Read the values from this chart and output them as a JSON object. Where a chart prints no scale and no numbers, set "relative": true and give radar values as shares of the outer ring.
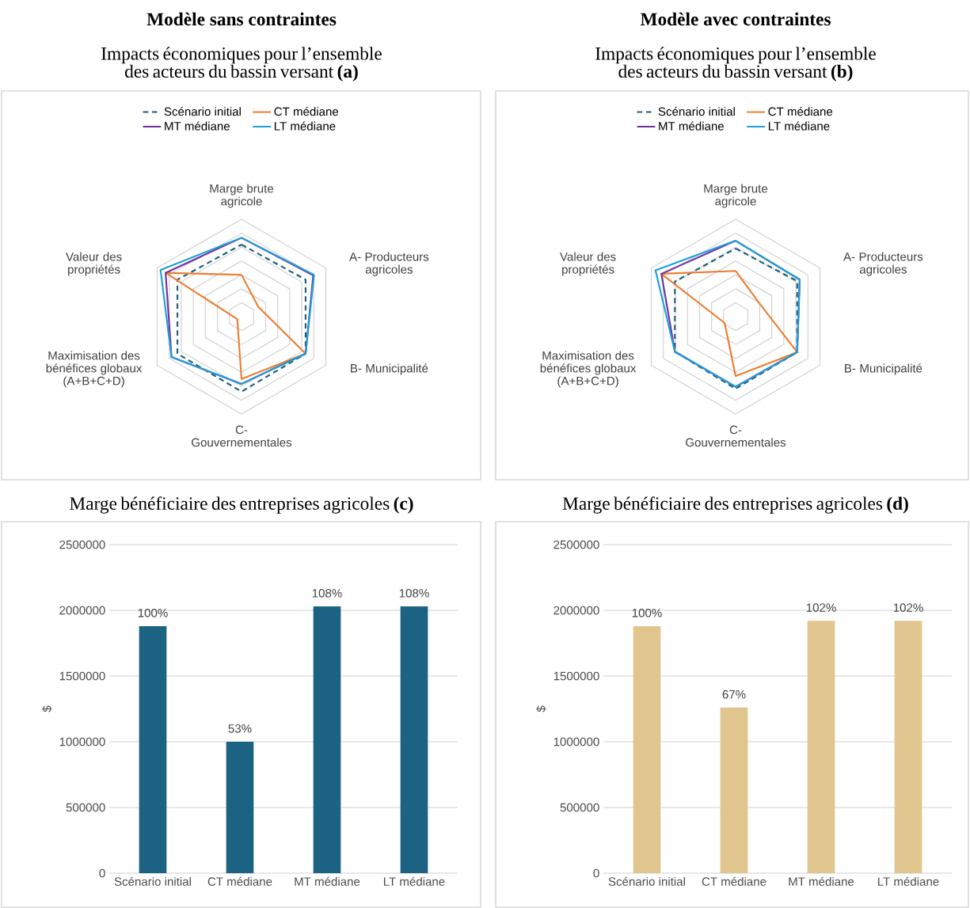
{
  "chart_data": [
    {
      "type": "radar",
      "subtitle": "Modèle sans contraintes",
      "title": "Impacts économiques pour l’ensemble des acteurs du bassin versant **(a)**",
      "categories": [
        "Marge brute agricole",
        "A- Producteurs agricoles",
        "B- Municipalité",
        "C- Gouvernementales",
        "Maximisation des bénéfices globaux (A+B+C+D)",
        "Valeur des propriétés"
      ],
      "relative": true,
      "grid": true,
      "legend": "top",
      "series": [
        {
          "name": "Scénario initial",
          "color": "#1f5f7a",
          "line_style": "dashed",
          "values": [
            0.74,
            0.76,
            0.76,
            0.77,
            0.76,
            0.76
          ]
        },
        {
          "name": "CT médiane",
          "color": "#ed7d31",
          "values": [
            0.43,
            0.2,
            0.76,
            0.64,
            0.05,
            0.9
          ]
        },
        {
          "name": "MT médiane",
          "color": "#7030a0",
          "values": [
            0.81,
            0.85,
            0.76,
            0.69,
            0.83,
            0.9
          ]
        },
        {
          "name": "LT médiane",
          "color": "#1e9fd8",
          "values": [
            0.81,
            0.86,
            0.76,
            0.69,
            0.83,
            0.96
          ]
        }
      ]
    },
    {
      "type": "radar",
      "subtitle": "Modèle avec contraintes",
      "title": "Impacts économiques pour l’ensemble des acteurs du bassin versant **(b)**",
      "categories": [
        "Marge brute agricole",
        "A- Producteurs agricoles",
        "B- Municipalité",
        "C- Gouvernementales",
        "Maximisation des bénéfices globaux (A+B+C+D)",
        "Valeur des propriétés"
      ],
      "relative": true,
      "grid": true,
      "legend": "top",
      "series": [
        {
          "name": "Scénario initial",
          "color": "#1f5f7a",
          "line_style": "dashed",
          "values": [
            0.7,
            0.73,
            0.73,
            0.74,
            0.72,
            0.72
          ]
        },
        {
          "name": "CT médiane",
          "color": "#ed7d31",
          "values": [
            0.47,
            0.28,
            0.73,
            0.61,
            0.13,
            0.88
          ]
        },
        {
          "name": "MT médiane",
          "color": "#7030a0",
          "values": [
            0.78,
            0.76,
            0.73,
            0.72,
            0.72,
            0.88
          ]
        },
        {
          "name": "LT médiane",
          "color": "#1e9fd8",
          "values": [
            0.78,
            0.76,
            0.73,
            0.72,
            0.72,
            0.95
          ]
        }
      ]
    },
    {
      "type": "bar",
      "title": "Marge bénéficiaire des entreprises agricoles **(c)**",
      "ylabel": "$",
      "categories": [
        "Scénario initial",
        "CT médiane",
        "MT médiane",
        "LT médiane"
      ],
      "values": [
        1880000,
        1000000,
        2030000,
        2030000
      ],
      "annotations": [
        {
          "text": "100%",
          "x": "Scénario initial",
          "y": 1880000
        },
        {
          "text": "53%",
          "x": "CT médiane",
          "y": 1000000
        },
        {
          "text": "108%",
          "x": "MT médiane",
          "y": 2030000
        },
        {
          "text": "108%",
          "x": "LT médiane",
          "y": 2030000
        }
      ],
      "color": "#1b6283",
      "ylim": [
        0,
        2500000
      ],
      "yticks": [
        0,
        500000,
        1000000,
        1500000,
        2000000,
        2500000
      ],
      "grid": "y"
    },
    {
      "type": "bar",
      "title": "Marge bénéficiaire des entreprises agricoles **(d)**",
      "ylabel": "$",
      "categories": [
        "Scénario initial",
        "CT médiane",
        "MT médiane",
        "LT médiane"
      ],
      "values": [
        1880000,
        1260000,
        1920000,
        1920000
      ],
      "annotations": [
        {
          "text": "100%",
          "x": "Scénario initial",
          "y": 1880000
        },
        {
          "text": "67%",
          "x": "CT médiane",
          "y": 1260000
        },
        {
          "text": "102%",
          "x": "MT médiane",
          "y": 1920000
        },
        {
          "text": "102%",
          "x": "LT médiane",
          "y": 1920000
        }
      ],
      "color": "#e0c68e",
      "ylim": [
        0,
        2500000
      ],
      "yticks": [
        0,
        500000,
        1000000,
        1500000,
        2000000,
        2500000
      ],
      "grid": "y"
    }
  ]
}
